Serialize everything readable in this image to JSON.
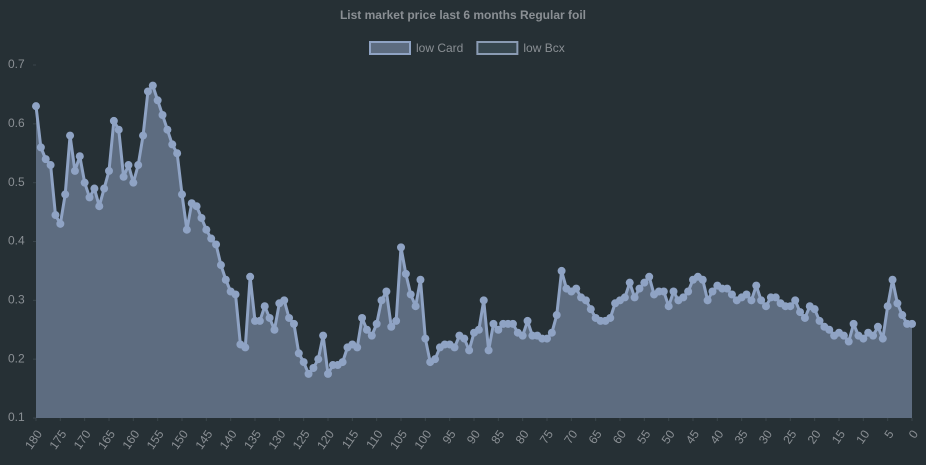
{
  "chart_data": {
    "type": "area-line",
    "title": "List market price last 6 months Regular foil",
    "x": [
      180,
      179,
      178,
      177,
      176,
      175,
      174,
      173,
      172,
      171,
      170,
      169,
      168,
      167,
      166,
      165,
      164,
      163,
      162,
      161,
      160,
      159,
      158,
      157,
      156,
      155,
      154,
      153,
      152,
      151,
      150,
      149,
      148,
      147,
      146,
      145,
      144,
      143,
      142,
      141,
      140,
      139,
      138,
      137,
      136,
      135,
      134,
      133,
      132,
      131,
      130,
      129,
      128,
      127,
      126,
      125,
      124,
      123,
      122,
      121,
      120,
      119,
      118,
      117,
      116,
      115,
      114,
      113,
      112,
      111,
      110,
      109,
      108,
      107,
      106,
      105,
      104,
      103,
      102,
      101,
      100,
      99,
      98,
      97,
      96,
      95,
      94,
      93,
      92,
      91,
      90,
      89,
      88,
      87,
      86,
      85,
      84,
      83,
      82,
      81,
      80,
      79,
      78,
      77,
      76,
      75,
      74,
      73,
      72,
      71,
      70,
      69,
      68,
      67,
      66,
      65,
      64,
      63,
      62,
      61,
      60,
      59,
      58,
      57,
      56,
      55,
      54,
      53,
      52,
      51,
      50,
      49,
      48,
      47,
      46,
      45,
      44,
      43,
      42,
      41,
      40,
      39,
      38,
      37,
      36,
      35,
      34,
      33,
      32,
      31,
      30,
      29,
      28,
      27,
      26,
      25,
      24,
      23,
      22,
      21,
      20,
      19,
      18,
      17,
      16,
      15,
      14,
      13,
      12,
      11,
      10,
      9,
      8,
      7,
      6,
      5,
      4,
      3,
      2,
      1,
      0
    ],
    "series": [
      {
        "name": "low Card",
        "color": "#8fa3c4",
        "fill": "#5d6c80",
        "values": [
          0.63,
          0.56,
          0.54,
          0.53,
          0.445,
          0.43,
          0.48,
          0.58,
          0.52,
          0.545,
          0.5,
          0.475,
          0.49,
          0.46,
          0.49,
          0.52,
          0.605,
          0.59,
          0.51,
          0.53,
          0.5,
          0.53,
          0.58,
          0.655,
          0.665,
          0.64,
          0.615,
          0.59,
          0.565,
          0.55,
          0.48,
          0.42,
          0.465,
          0.46,
          0.44,
          0.42,
          0.405,
          0.395,
          0.36,
          0.335,
          0.315,
          0.31,
          0.225,
          0.22,
          0.34,
          0.265,
          0.265,
          0.29,
          0.27,
          0.25,
          0.295,
          0.3,
          0.27,
          0.26,
          0.21,
          0.195,
          0.175,
          0.185,
          0.2,
          0.24,
          0.175,
          0.19,
          0.19,
          0.195,
          0.22,
          0.225,
          0.22,
          0.27,
          0.25,
          0.24,
          0.26,
          0.3,
          0.315,
          0.255,
          0.265,
          0.39,
          0.345,
          0.31,
          0.29,
          0.335,
          0.235,
          0.195,
          0.2,
          0.22,
          0.225,
          0.225,
          0.22,
          0.24,
          0.235,
          0.215,
          0.245,
          0.25,
          0.3,
          0.215,
          0.26,
          0.25,
          0.26,
          0.26,
          0.26,
          0.245,
          0.24,
          0.265,
          0.24,
          0.24,
          0.235,
          0.235,
          0.245,
          0.275,
          0.35,
          0.32,
          0.315,
          0.32,
          0.305,
          0.3,
          0.285,
          0.27,
          0.265,
          0.265,
          0.27,
          0.295,
          0.3,
          0.305,
          0.33,
          0.305,
          0.32,
          0.33,
          0.34,
          0.31,
          0.315,
          0.315,
          0.29,
          0.315,
          0.3,
          0.305,
          0.315,
          0.335,
          0.34,
          0.335,
          0.3,
          0.315,
          0.325,
          0.32,
          0.32,
          0.31,
          0.3,
          0.305,
          0.31,
          0.3,
          0.325,
          0.3,
          0.29,
          0.305,
          0.305,
          0.295,
          0.29,
          0.29,
          0.3,
          0.28,
          0.27,
          0.29,
          0.285,
          0.265,
          0.255,
          0.25,
          0.24,
          0.245,
          0.24,
          0.23,
          0.26,
          0.24,
          0.235,
          0.245,
          0.24,
          0.255,
          0.235,
          0.29,
          0.335,
          0.295,
          0.275,
          0.26,
          0.26
        ]
      },
      {
        "name": "low Bcx",
        "color": "#8a9bb3",
        "fill": "#37474f",
        "values": [
          null,
          null,
          null,
          null,
          null,
          null,
          null,
          null,
          null,
          null,
          null,
          null,
          null,
          null,
          null,
          null,
          null,
          null,
          null,
          null,
          null,
          null,
          null,
          null,
          null,
          null,
          null,
          null,
          null,
          null,
          null,
          null,
          null,
          null,
          null,
          null,
          null,
          null,
          null,
          null,
          null,
          null,
          null,
          null,
          null,
          null,
          null,
          null,
          null,
          null,
          null,
          null,
          null,
          null,
          null,
          null,
          null,
          null,
          null,
          null,
          null,
          null,
          null,
          null,
          null,
          null,
          null,
          null,
          null,
          null,
          null,
          null,
          null,
          null,
          null,
          null,
          null,
          null,
          null,
          null,
          null,
          null,
          null,
          null,
          null,
          null,
          null,
          null,
          null,
          null,
          null,
          null,
          null,
          null,
          null,
          null,
          null,
          null,
          null,
          null,
          null,
          null,
          null,
          null,
          null,
          null,
          null,
          null,
          null,
          null,
          null,
          null,
          null,
          null,
          null,
          null,
          null,
          null,
          null,
          null,
          null,
          null,
          null,
          null,
          null,
          null,
          null,
          null,
          null,
          null,
          null,
          null,
          null,
          null,
          null,
          null,
          null,
          null,
          null,
          null,
          null,
          null,
          null,
          null,
          null,
          null,
          null,
          null,
          null,
          null,
          null,
          null,
          null,
          null,
          null,
          null,
          null,
          null,
          null,
          null,
          null,
          null,
          null,
          null,
          null,
          null,
          null,
          null,
          null,
          null,
          null,
          null,
          null,
          null,
          null,
          null,
          null,
          null,
          null,
          null,
          null
        ]
      }
    ],
    "xlim": [
      180,
      0
    ],
    "xticks": [
      180,
      175,
      170,
      165,
      160,
      155,
      150,
      145,
      140,
      135,
      130,
      125,
      120,
      115,
      110,
      105,
      100,
      95,
      90,
      85,
      80,
      75,
      70,
      65,
      60,
      55,
      50,
      45,
      40,
      35,
      30,
      25,
      20,
      15,
      10,
      5,
      0
    ],
    "ylim": [
      0.1,
      0.7
    ],
    "yticks": [
      0.1,
      0.2,
      0.3,
      0.4,
      0.5,
      0.6,
      0.7
    ],
    "grid": false
  }
}
